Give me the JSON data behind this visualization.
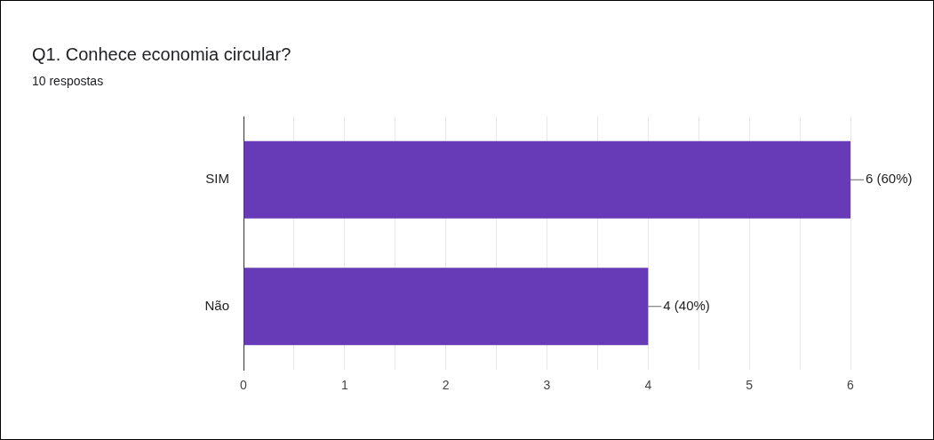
{
  "chart_data": {
    "type": "bar",
    "orientation": "horizontal",
    "title": "Q1. Conhece economia circular?",
    "subtitle": "10 respostas",
    "categories": [
      "SIM",
      "Não"
    ],
    "values": [
      6,
      4
    ],
    "color": "#673ab7",
    "value_labels": [
      "6 (60%)",
      "4 (40%)"
    ],
    "xlim": [
      0,
      6
    ],
    "xticks": [
      0,
      {
        "value": 0.5,
        "label": null
      },
      1,
      {
        "value": 1.5,
        "label": null
      },
      2,
      {
        "value": 2.5,
        "label": null
      },
      3,
      {
        "value": 3.5,
        "label": null
      },
      4,
      {
        "value": 4.5,
        "label": null
      },
      5,
      {
        "value": 5.5,
        "label": null
      },
      6
    ],
    "grid": "x",
    "legend": false
  }
}
